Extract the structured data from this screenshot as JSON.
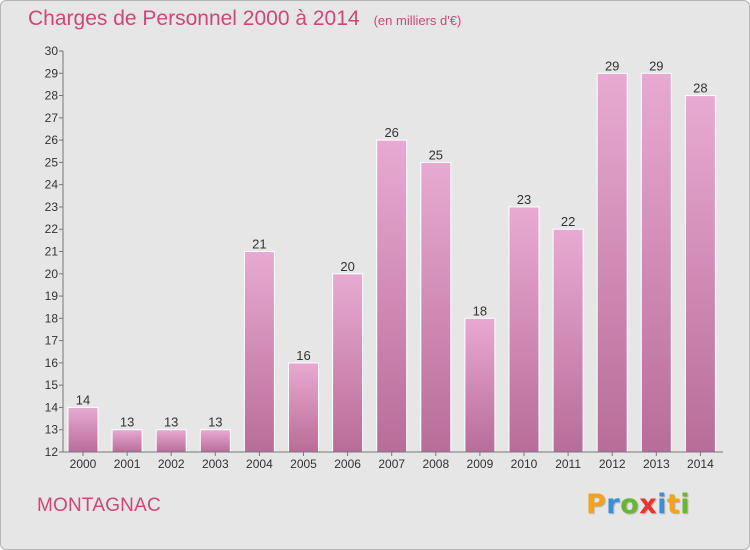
{
  "title": "Charges de Personnel 2000 à 2014",
  "subtitle": "(en milliers d'€)",
  "commune": "MONTAGNAC",
  "logo": {
    "text": "Proxiti",
    "letters": [
      {
        "ch": "P",
        "color": "#f5a11a"
      },
      {
        "ch": "r",
        "color": "#3a8fd8"
      },
      {
        "ch": "o",
        "color": "#6ab533"
      },
      {
        "ch": "x",
        "color": "#e8352b"
      },
      {
        "ch": "i",
        "color": "#3a8fd8"
      },
      {
        "ch": "t",
        "color": "#f5a11a"
      },
      {
        "ch": "i",
        "color": "#6ab533"
      }
    ]
  },
  "colors": {
    "accent": "#d0457a",
    "bar_top": "#e8aad2",
    "bar_bottom": "#b86d99",
    "background": "#e6e6e6"
  },
  "chart_data": {
    "type": "bar",
    "categories": [
      "2000",
      "2001",
      "2002",
      "2003",
      "2004",
      "2005",
      "2006",
      "2007",
      "2008",
      "2009",
      "2010",
      "2011",
      "2012",
      "2013",
      "2014"
    ],
    "values": [
      14,
      13,
      13,
      13,
      21,
      16,
      20,
      26,
      25,
      18,
      23,
      22,
      29,
      29,
      28
    ],
    "ylim": [
      12,
      30
    ],
    "yticks": [
      12,
      13,
      14,
      15,
      16,
      17,
      18,
      19,
      20,
      21,
      22,
      23,
      24,
      25,
      26,
      27,
      28,
      29,
      30
    ],
    "ytick_labels": [
      "12",
      "13",
      "14",
      "15",
      "16",
      "17",
      "18",
      "19",
      "20",
      "21",
      "22",
      "23",
      "24",
      "25",
      "26",
      "27",
      "28",
      "29",
      "30"
    ],
    "grid": false,
    "legend": "none",
    "data_labels": true
  }
}
